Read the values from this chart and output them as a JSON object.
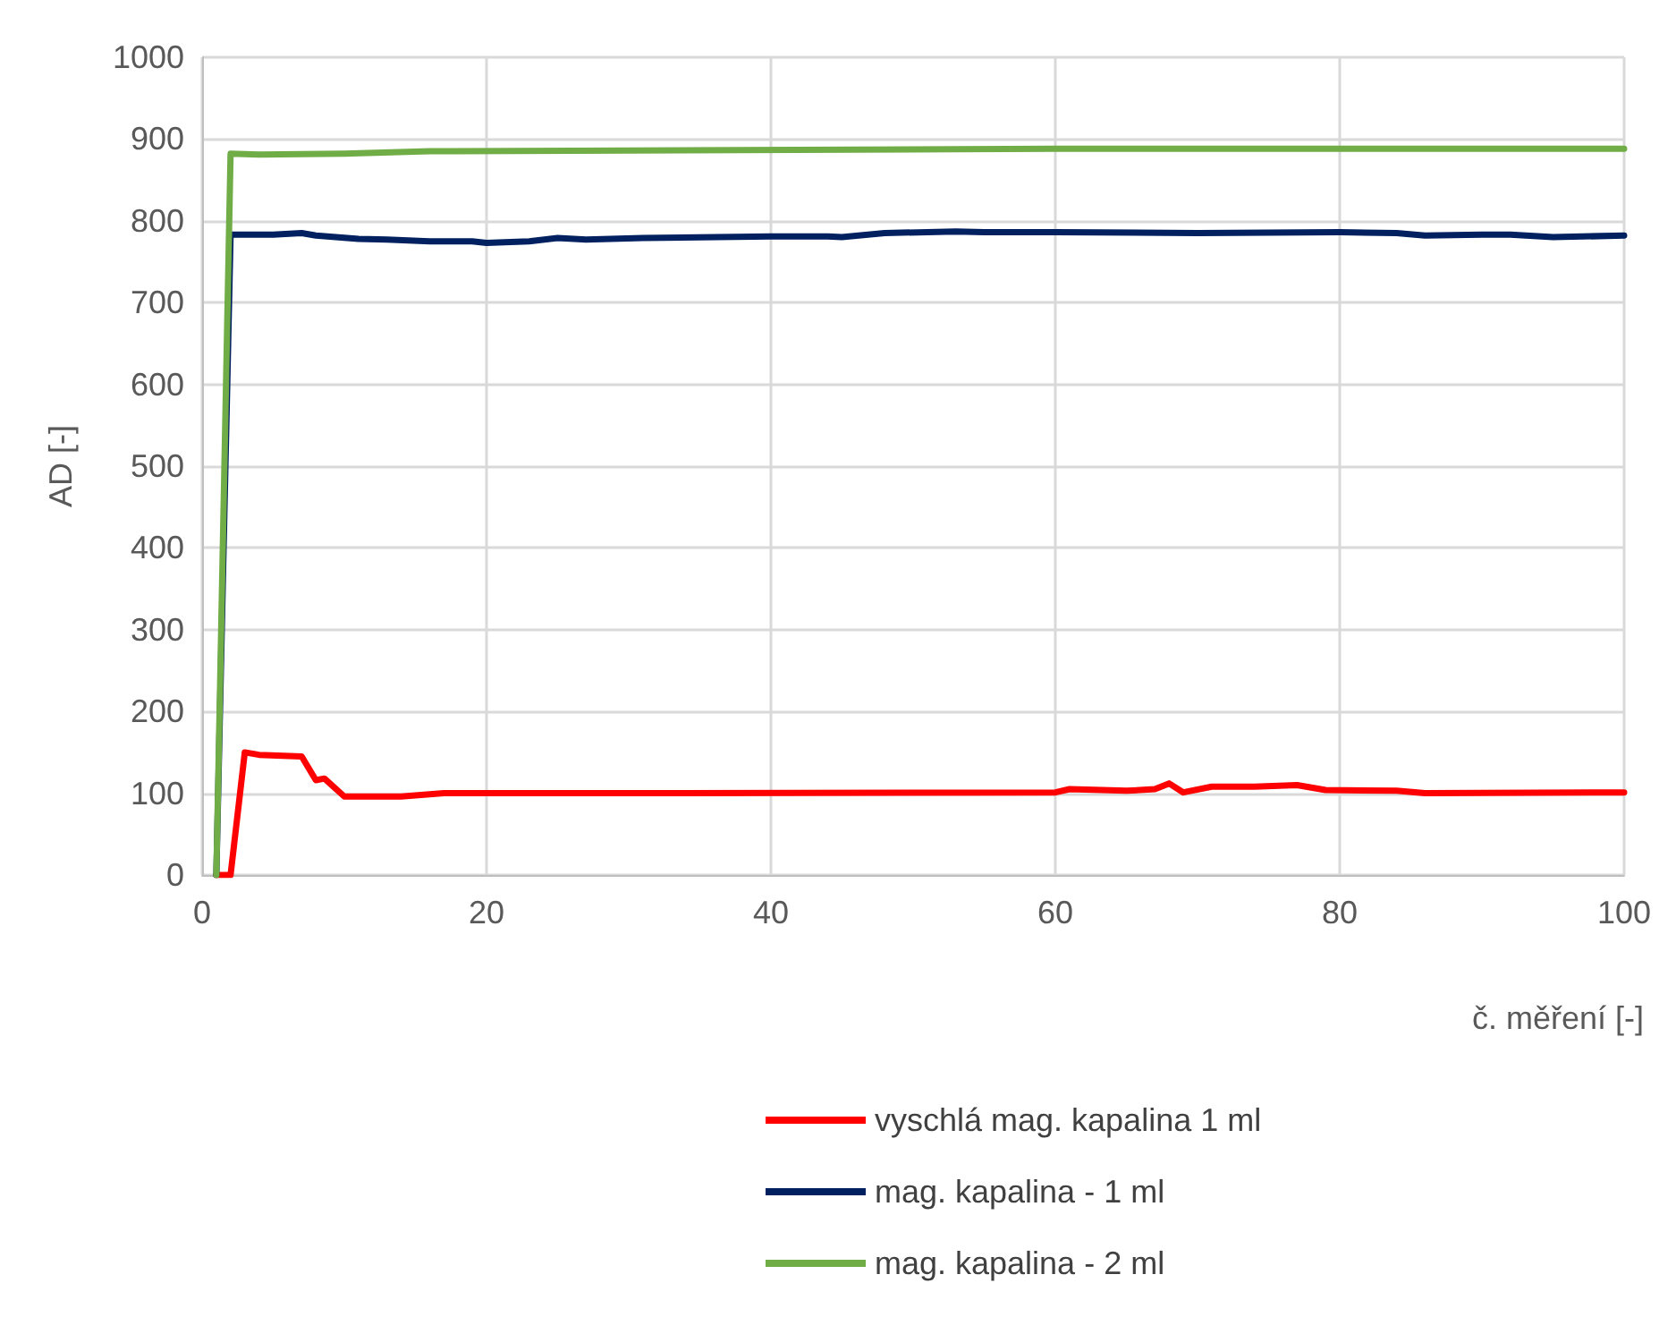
{
  "chart_data": {
    "type": "line",
    "xlabel": "č. měření [-]",
    "ylabel": "AD [-]",
    "xlim": [
      0,
      100
    ],
    "xticks": [
      0,
      20,
      40,
      60,
      80,
      100
    ],
    "ylim": [
      0,
      1000
    ],
    "yticks": [
      0,
      100,
      200,
      300,
      400,
      500,
      600,
      700,
      800,
      900,
      1000
    ],
    "grid": true,
    "legend": "bottom",
    "marker": "none",
    "line_style": "solid",
    "series": [
      {
        "name": "vyschlá mag. kapalina 1 ml",
        "color": "#ff0000",
        "x": [
          1,
          2,
          3,
          4,
          7,
          8,
          8.6,
          10,
          14,
          17,
          30,
          60,
          61,
          65,
          67,
          68,
          69,
          71,
          74,
          77,
          79,
          84,
          86,
          100
        ],
        "values": [
          0,
          0,
          150,
          147,
          145,
          116,
          118,
          96,
          96,
          100,
          100,
          101,
          105,
          103,
          105,
          112,
          101,
          108,
          108,
          110,
          104,
          103,
          100,
          101
        ]
      },
      {
        "name": "mag. kapalina - 1 ml",
        "color": "#002060",
        "x": [
          1,
          2,
          5,
          7,
          8,
          11,
          13,
          16,
          19,
          20,
          23,
          25,
          27,
          31,
          40,
          44,
          45,
          48,
          53,
          55,
          60,
          70,
          80,
          84,
          86,
          90,
          92,
          95,
          100
        ],
        "values": [
          0,
          783,
          783,
          785,
          782,
          778,
          777,
          775,
          775,
          773,
          775,
          779,
          777,
          779,
          781,
          781,
          780,
          785,
          787,
          786,
          786,
          785,
          786,
          785,
          782,
          783,
          783,
          780,
          782
        ]
      },
      {
        "name": "mag. kapalina - 2 ml",
        "color": "#70ad47",
        "x": [
          1,
          2,
          4,
          10,
          16,
          30,
          60,
          100
        ],
        "values": [
          0,
          882,
          881,
          882,
          885,
          886,
          888,
          888
        ]
      }
    ]
  }
}
